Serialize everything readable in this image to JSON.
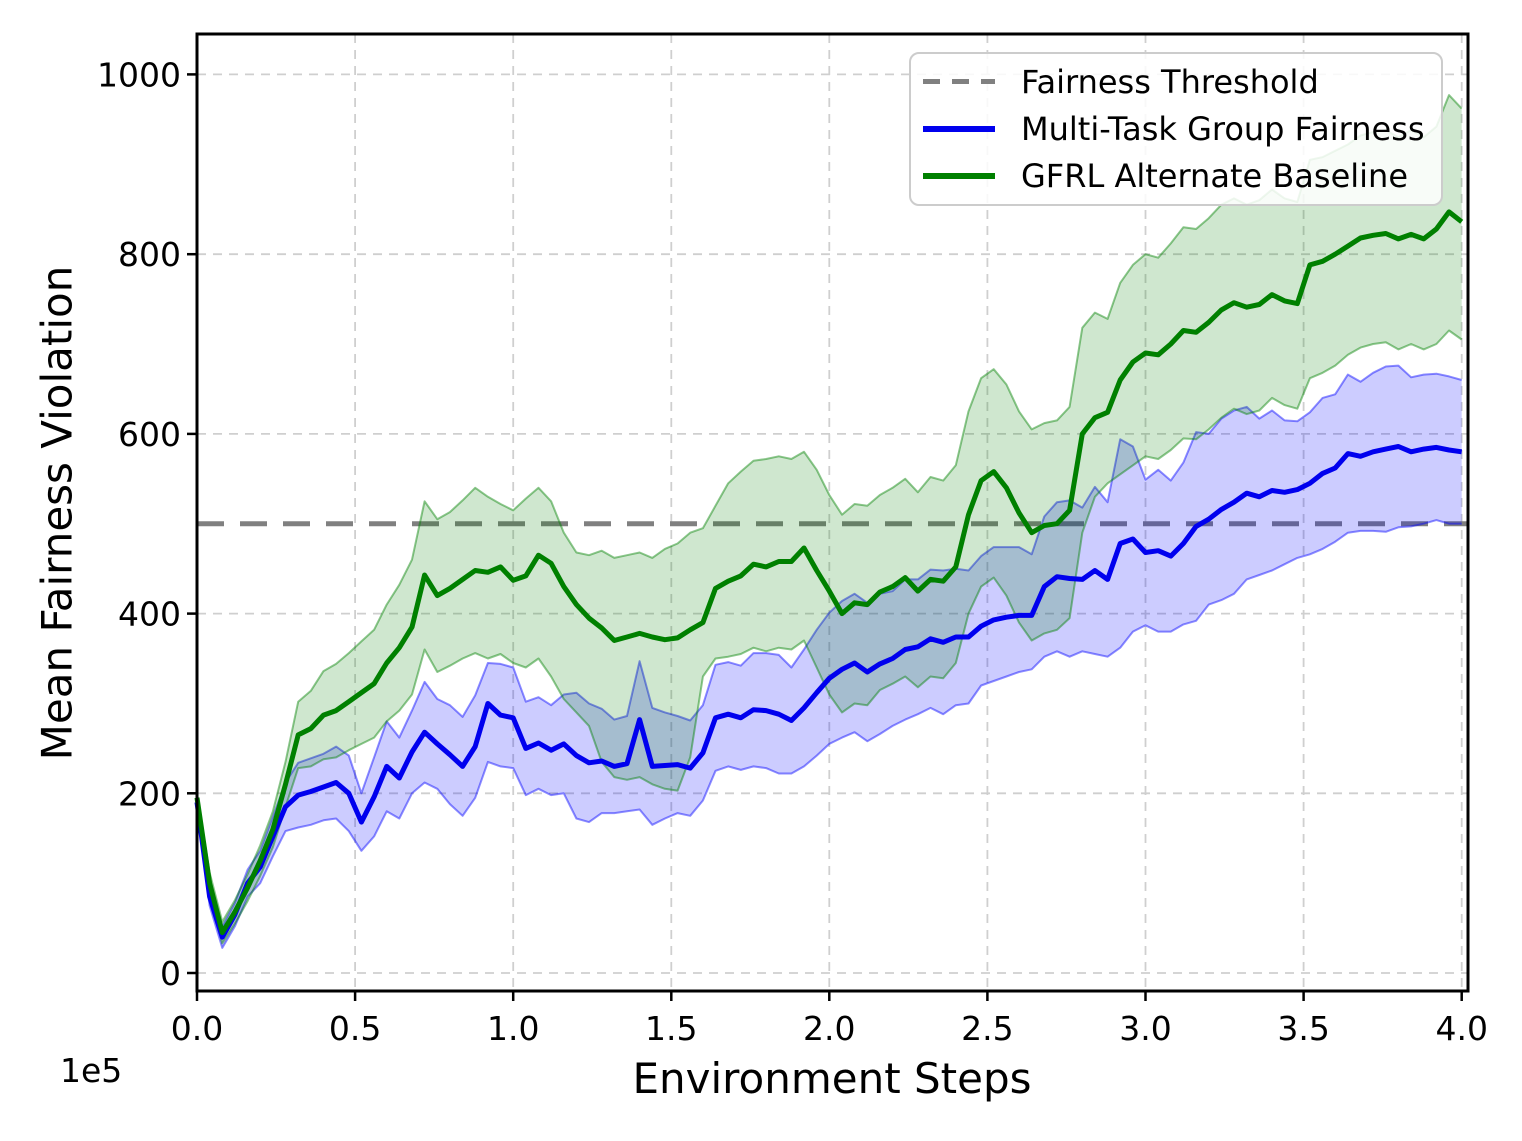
{
  "figure": {
    "background": "#ffffff",
    "axis_color": "#000000",
    "grid_color": "#cfcfcf"
  },
  "chart_data": {
    "type": "line",
    "title": "",
    "xlabel": "Environment Steps",
    "ylabel": "Mean Fairness Violation",
    "x_offset_label": "1e5",
    "xlim": [
      0,
      4.02
    ],
    "ylim": [
      -20,
      1045
    ],
    "grid": true,
    "legend_position": "upper right",
    "x_ticks": [
      0,
      0.5,
      1.0,
      1.5,
      2.0,
      2.5,
      3.0,
      3.5,
      4.0
    ],
    "x_tick_labels": [
      "0.0",
      "0.5",
      "1.0",
      "1.5",
      "2.0",
      "2.5",
      "3.0",
      "3.5",
      "4.0"
    ],
    "y_ticks": [
      0,
      200,
      400,
      600,
      800,
      1000
    ],
    "y_tick_labels": [
      "0",
      "200",
      "400",
      "600",
      "800",
      "1000"
    ],
    "threshold": {
      "label": "Fairness Threshold",
      "value": 500,
      "color": "#808080",
      "style": "dashed"
    },
    "x": [
      0,
      0.04,
      0.08,
      0.12,
      0.16,
      0.2,
      0.24,
      0.28,
      0.32,
      0.36,
      0.4,
      0.44,
      0.48,
      0.52,
      0.56,
      0.6,
      0.64,
      0.68,
      0.72,
      0.76,
      0.8,
      0.84,
      0.88,
      0.92,
      0.96,
      1,
      1.04,
      1.08,
      1.12,
      1.16,
      1.2,
      1.24,
      1.28,
      1.32,
      1.36,
      1.4,
      1.44,
      1.48,
      1.52,
      1.56,
      1.6,
      1.64,
      1.68,
      1.72,
      1.76,
      1.8,
      1.84,
      1.88,
      1.92,
      1.96,
      2,
      2.04,
      2.08,
      2.12,
      2.16,
      2.2,
      2.24,
      2.28,
      2.32,
      2.36,
      2.4,
      2.44,
      2.48,
      2.52,
      2.56,
      2.6,
      2.64,
      2.68,
      2.72,
      2.76,
      2.8,
      2.84,
      2.88,
      2.92,
      2.96,
      3,
      3.04,
      3.08,
      3.12,
      3.16,
      3.2,
      3.24,
      3.28,
      3.32,
      3.36,
      3.4,
      3.44,
      3.48,
      3.52,
      3.56,
      3.6,
      3.64,
      3.68,
      3.72,
      3.76,
      3.8,
      3.84,
      3.88,
      3.92,
      3.96,
      4
    ],
    "series": [
      {
        "name": "Multi-Task Group Fairness",
        "color": "#0000ee",
        "band_fill": "rgba(0,0,255,0.20)",
        "band_edge": "rgba(0,0,255,0.45)",
        "values": [
          190,
          85,
          40,
          65,
          100,
          118,
          152,
          185,
          198,
          202,
          207,
          212,
          200,
          168,
          196,
          230,
          217,
          246,
          268,
          255,
          243,
          230,
          252,
          300,
          287,
          284,
          250,
          256,
          248,
          255,
          242,
          234,
          236,
          230,
          233,
          282,
          230,
          231,
          232,
          228,
          245,
          284,
          288,
          284,
          293,
          292,
          288,
          281,
          295,
          312,
          328,
          338,
          345,
          335,
          344,
          350,
          360,
          363,
          372,
          368,
          374,
          374,
          386,
          393,
          396,
          398,
          398,
          430,
          441,
          439,
          438,
          448,
          438,
          478,
          483,
          468,
          470,
          464,
          478,
          497,
          505,
          516,
          524,
          534,
          530,
          537,
          535,
          538,
          545,
          556,
          562,
          578,
          575,
          580,
          583,
          586,
          580,
          583,
          585,
          582,
          580
        ],
        "lower": [
          185,
          75,
          28,
          52,
          85,
          100,
          130,
          158,
          162,
          165,
          170,
          172,
          158,
          136,
          152,
          180,
          172,
          200,
          212,
          205,
          188,
          175,
          195,
          235,
          230,
          228,
          198,
          205,
          198,
          200,
          172,
          168,
          178,
          178,
          180,
          182,
          165,
          172,
          178,
          175,
          192,
          225,
          230,
          226,
          230,
          228,
          222,
          222,
          230,
          242,
          255,
          262,
          268,
          258,
          266,
          275,
          282,
          288,
          295,
          288,
          298,
          300,
          320,
          325,
          330,
          335,
          338,
          352,
          358,
          352,
          358,
          355,
          352,
          362,
          380,
          387,
          380,
          380,
          388,
          392,
          410,
          415,
          422,
          438,
          443,
          448,
          455,
          462,
          466,
          472,
          480,
          490,
          492,
          492,
          491,
          496,
          497,
          500,
          504,
          500,
          500
        ],
        "upper": [
          195,
          95,
          52,
          78,
          115,
          136,
          174,
          212,
          234,
          239,
          244,
          252,
          242,
          200,
          240,
          280,
          262,
          292,
          324,
          305,
          298,
          285,
          309,
          345,
          344,
          340,
          302,
          307,
          298,
          310,
          312,
          300,
          294,
          282,
          286,
          347,
          295,
          290,
          286,
          281,
          298,
          343,
          346,
          342,
          356,
          356,
          354,
          340,
          360,
          382,
          401,
          414,
          422,
          412,
          422,
          425,
          438,
          438,
          449,
          448,
          450,
          448,
          464,
          474,
          474,
          474,
          466,
          508,
          524,
          526,
          518,
          541,
          524,
          594,
          586,
          549,
          560,
          548,
          568,
          602,
          600,
          617,
          626,
          630,
          617,
          626,
          615,
          614,
          624,
          640,
          644,
          666,
          658,
          668,
          675,
          676,
          663,
          666,
          667,
          664,
          660
        ]
      },
      {
        "name": "GFRL Alternate Baseline",
        "color": "#008000",
        "band_fill": "rgba(0,128,0,0.19)",
        "band_edge": "rgba(0,128,0,0.45)",
        "values": [
          195,
          100,
          45,
          68,
          95,
          125,
          160,
          210,
          265,
          272,
          287,
          292,
          302,
          312,
          322,
          345,
          362,
          385,
          443,
          420,
          428,
          438,
          448,
          446,
          452,
          437,
          442,
          465,
          456,
          430,
          410,
          395,
          384,
          370,
          374,
          378,
          374,
          371,
          373,
          382,
          390,
          428,
          436,
          442,
          455,
          452,
          458,
          458,
          473,
          448,
          425,
          400,
          412,
          410,
          424,
          430,
          440,
          425,
          438,
          436,
          452,
          510,
          548,
          558,
          540,
          512,
          490,
          498,
          500,
          515,
          600,
          618,
          624,
          660,
          680,
          690,
          688,
          700,
          715,
          713,
          724,
          738,
          746,
          741,
          744,
          755,
          748,
          745,
          788,
          792,
          800,
          809,
          818,
          821,
          823,
          817,
          822,
          817,
          828,
          847,
          836
        ],
        "lower": [
          190,
          88,
          33,
          55,
          80,
          108,
          140,
          185,
          228,
          230,
          238,
          240,
          248,
          255,
          262,
          280,
          292,
          310,
          360,
          335,
          342,
          350,
          356,
          350,
          355,
          345,
          340,
          350,
          330,
          305,
          290,
          275,
          235,
          218,
          215,
          218,
          210,
          205,
          203,
          240,
          330,
          350,
          352,
          355,
          362,
          358,
          362,
          360,
          370,
          340,
          310,
          290,
          300,
          298,
          315,
          322,
          330,
          318,
          330,
          328,
          345,
          400,
          430,
          440,
          420,
          390,
          370,
          378,
          382,
          395,
          490,
          530,
          545,
          555,
          565,
          575,
          572,
          582,
          595,
          594,
          605,
          618,
          628,
          622,
          626,
          640,
          632,
          628,
          662,
          668,
          676,
          688,
          696,
          700,
          702,
          694,
          700,
          694,
          700,
          715,
          705
        ],
        "upper": [
          200,
          112,
          57,
          81,
          110,
          142,
          180,
          235,
          302,
          314,
          336,
          344,
          356,
          369,
          382,
          410,
          432,
          460,
          525,
          505,
          513,
          526,
          540,
          530,
          522,
          515,
          528,
          540,
          525,
          490,
          468,
          465,
          470,
          462,
          465,
          468,
          462,
          472,
          478,
          490,
          495,
          520,
          545,
          558,
          570,
          572,
          575,
          572,
          580,
          560,
          532,
          510,
          522,
          520,
          532,
          540,
          550,
          535,
          552,
          548,
          565,
          625,
          662,
          672,
          655,
          625,
          605,
          612,
          615,
          630,
          718,
          735,
          728,
          768,
          788,
          800,
          796,
          812,
          830,
          828,
          840,
          855,
          862,
          855,
          860,
          872,
          862,
          858,
          905,
          908,
          915,
          922,
          932,
          936,
          938,
          930,
          938,
          930,
          942,
          977,
          962
        ]
      }
    ]
  }
}
